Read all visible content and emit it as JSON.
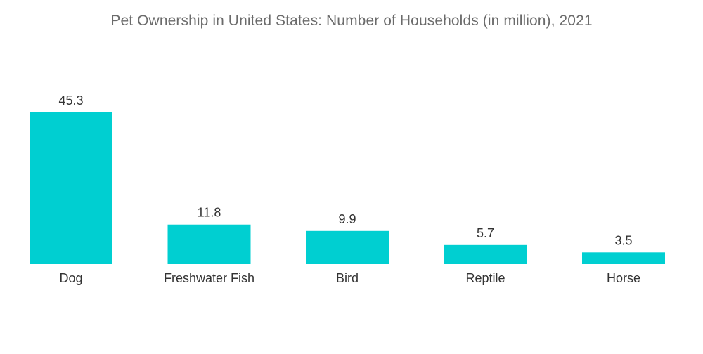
{
  "chart_data": {
    "type": "bar",
    "title": "Pet Ownership in United States: Number of Households (in million), 2021",
    "categories": [
      "Dog",
      "Freshwater Fish",
      "Bird",
      "Reptile",
      "Horse"
    ],
    "values": [
      45.3,
      11.8,
      9.9,
      5.7,
      3.5
    ],
    "value_labels": [
      "45.3",
      "11.8",
      "9.9",
      "5.7",
      "3.5"
    ],
    "xlabel": "",
    "ylabel": "",
    "ylim": [
      0,
      45.3
    ],
    "grid": false,
    "legend": "none",
    "colors": {
      "bar": "#00cfd1",
      "text": "#333333",
      "title": "#6b6b6b"
    }
  }
}
